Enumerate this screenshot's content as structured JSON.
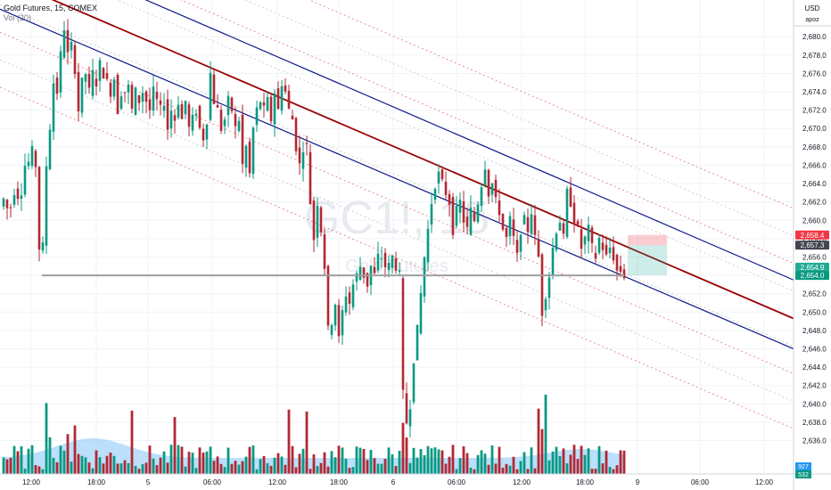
{
  "legend": {
    "symbol_line": "Gold Futures, 15, COMEX",
    "indicator_line": "Vol (20)"
  },
  "watermark": {
    "ticker": "GC1!, 15",
    "name": "Gold Futures"
  },
  "price_axis": {
    "currency": "USD",
    "username": "apoz",
    "labels": [
      "2,680.0",
      "2,678.0",
      "2,676.0",
      "2,674.0",
      "2,672.0",
      "2,670.0",
      "2,668.0",
      "2,666.0",
      "2,664.0",
      "2,662.0",
      "2,660.0",
      "2,658.0",
      "2,656.0",
      "2,654.0",
      "2,652.0",
      "2,650.0",
      "2,648.0",
      "2,646.0",
      "2,644.0",
      "2,642.0",
      "2,640.0",
      "2,638.0",
      "2,636.0"
    ]
  },
  "time_axis": {
    "labels": [
      "12:00",
      "18:00",
      "5",
      "06:00",
      "12:00",
      "18:00",
      "6",
      "06:00",
      "12:00",
      "18:00",
      "9",
      "06:00",
      "12:00"
    ]
  },
  "price_tags": [
    {
      "text": "2,658.4",
      "bg": "#f23645",
      "fg": "#ffffff"
    },
    {
      "text": "2,657.3",
      "bg": "#434651",
      "fg": "#ffffff"
    },
    {
      "text": "2,654.9",
      "bg": "#22ab94",
      "fg": "#ffffff"
    },
    {
      "text": "2,654.0",
      "bg": "#089981",
      "fg": "#ffffff"
    }
  ],
  "volume_tags": [
    {
      "text": "927",
      "bg": "#2196f3"
    },
    {
      "text": "532",
      "bg": "#089981"
    }
  ],
  "colors": {
    "up": "#089981",
    "down": "#b22833",
    "channel_main": "#990000",
    "channel_edge": "#0d1a8a",
    "vol_ma": "#90caf9"
  },
  "chart_data": {
    "type": "candlestick",
    "instrument": "Gold Futures, 15, COMEX",
    "ylim": [
      2634.5,
      2684
    ],
    "x_ticks": [
      "12:00",
      "18:00",
      "5",
      "06:00",
      "12:00",
      "18:00",
      "6",
      "06:00",
      "12:00",
      "18:00",
      "9",
      "06:00",
      "12:00"
    ],
    "price_path": [
      [
        0,
        2661.5
      ],
      [
        5,
        2662.5
      ],
      [
        10,
        2660.5
      ],
      [
        14,
        2662.5
      ],
      [
        18,
        2664
      ],
      [
        22,
        2661.5
      ],
      [
        26,
        2665
      ],
      [
        30,
        2667
      ],
      [
        33,
        2666
      ],
      [
        36,
        2667.5
      ],
      [
        40,
        2666
      ],
      [
        44,
        2657
      ],
      [
        47,
        2654.5
      ],
      [
        51,
        2665
      ],
      [
        55,
        2669
      ],
      [
        60,
        2675
      ],
      [
        64,
        2674
      ],
      [
        68,
        2678
      ],
      [
        72,
        2681
      ],
      [
        76,
        2678
      ],
      [
        80,
        2679
      ],
      [
        84,
        2676.5
      ],
      [
        88,
        2672
      ],
      [
        92,
        2675
      ],
      [
        96,
        2676
      ],
      [
        100,
        2674
      ],
      [
        104,
        2676
      ],
      [
        108,
        2675
      ],
      [
        112,
        2677
      ],
      [
        116,
        2676
      ],
      [
        120,
        2675
      ],
      [
        124,
        2674
      ],
      [
        128,
        2675.5
      ],
      [
        132,
        2672
      ],
      [
        136,
        2674
      ],
      [
        140,
        2674
      ],
      [
        144,
        2674.5
      ],
      [
        148,
        2672
      ],
      [
        152,
        2674
      ],
      [
        156,
        2673
      ],
      [
        160,
        2674
      ],
      [
        164,
        2673
      ],
      [
        168,
        2672
      ],
      [
        172,
        2674
      ],
      [
        176,
        2673
      ],
      [
        180,
        2672
      ],
      [
        184,
        2673
      ],
      [
        188,
        2670
      ],
      [
        192,
        2672
      ],
      [
        196,
        2671
      ],
      [
        200,
        2673
      ],
      [
        204,
        2671
      ],
      [
        208,
        2673
      ],
      [
        212,
        2670
      ],
      [
        216,
        2671
      ],
      [
        220,
        2672
      ],
      [
        224,
        2670
      ],
      [
        228,
        2669
      ],
      [
        232,
        2671
      ],
      [
        236,
        2676
      ],
      [
        240,
        2673
      ],
      [
        244,
        2672
      ],
      [
        248,
        2670
      ],
      [
        252,
        2671
      ],
      [
        256,
        2673
      ],
      [
        260,
        2672
      ],
      [
        264,
        2670
      ],
      [
        268,
        2671
      ],
      [
        272,
        2666
      ],
      [
        276,
        2668
      ],
      [
        280,
        2665
      ],
      [
        284,
        2670
      ],
      [
        288,
        2672
      ],
      [
        292,
        2673
      ],
      [
        296,
        2672
      ],
      [
        300,
        2673
      ],
      [
        304,
        2671
      ],
      [
        308,
        2674
      ],
      [
        312,
        2672
      ],
      [
        316,
        2675
      ],
      [
        320,
        2674
      ],
      [
        324,
        2672
      ],
      [
        328,
        2671
      ],
      [
        332,
        2668
      ],
      [
        336,
        2666
      ],
      [
        340,
        2668
      ],
      [
        344,
        2668
      ],
      [
        348,
        2662
      ],
      [
        352,
        2658
      ],
      [
        356,
        2662
      ],
      [
        360,
        2659
      ],
      [
        364,
        2655
      ],
      [
        368,
        2648
      ],
      [
        372,
        2649
      ],
      [
        376,
        2651
      ],
      [
        380,
        2647
      ],
      [
        384,
        2650
      ],
      [
        388,
        2652
      ],
      [
        392,
        2651
      ],
      [
        396,
        2653
      ],
      [
        400,
        2654
      ],
      [
        404,
        2655
      ],
      [
        408,
        2654
      ],
      [
        412,
        2653
      ],
      [
        416,
        2655
      ],
      [
        420,
        2654
      ],
      [
        424,
        2656
      ],
      [
        428,
        2656
      ],
      [
        432,
        2655
      ],
      [
        436,
        2655
      ],
      [
        440,
        2656
      ],
      [
        444,
        2655
      ],
      [
        448,
        2654
      ],
      [
        452,
        2641
      ],
      [
        456,
        2638
      ],
      [
        460,
        2640
      ],
      [
        464,
        2645
      ],
      [
        468,
        2648
      ],
      [
        472,
        2652
      ],
      [
        476,
        2656
      ],
      [
        480,
        2659
      ],
      [
        484,
        2662
      ],
      [
        488,
        2664
      ],
      [
        492,
        2665
      ],
      [
        496,
        2664
      ],
      [
        500,
        2663
      ],
      [
        504,
        2662
      ],
      [
        508,
        2659
      ],
      [
        512,
        2661
      ],
      [
        516,
        2662
      ],
      [
        520,
        2660
      ],
      [
        524,
        2659
      ],
      [
        528,
        2661
      ],
      [
        532,
        2660
      ],
      [
        536,
        2662
      ],
      [
        540,
        2664
      ],
      [
        544,
        2666
      ],
      [
        548,
        2663
      ],
      [
        552,
        2664
      ],
      [
        556,
        2662
      ],
      [
        560,
        2661
      ],
      [
        564,
        2659
      ],
      [
        568,
        2658
      ],
      [
        572,
        2660
      ],
      [
        576,
        2658
      ],
      [
        580,
        2656
      ],
      [
        584,
        2659
      ],
      [
        588,
        2660
      ],
      [
        592,
        2659
      ],
      [
        596,
        2661
      ],
      [
        600,
        2658
      ],
      [
        604,
        2656
      ],
      [
        608,
        2650
      ],
      [
        612,
        2652
      ],
      [
        616,
        2654
      ],
      [
        620,
        2657
      ],
      [
        624,
        2659
      ],
      [
        628,
        2660
      ],
      [
        632,
        2658
      ],
      [
        636,
        2663
      ],
      [
        640,
        2662
      ],
      [
        644,
        2660
      ],
      [
        648,
        2659
      ],
      [
        652,
        2657
      ],
      [
        656,
        2658
      ],
      [
        660,
        2659
      ],
      [
        664,
        2657
      ],
      [
        668,
        2656
      ],
      [
        672,
        2658
      ],
      [
        676,
        2657
      ],
      [
        680,
        2656
      ],
      [
        684,
        2657
      ],
      [
        688,
        2656
      ],
      [
        692,
        2654.5
      ],
      [
        696,
        2654.5
      ],
      [
        700,
        2654
      ]
    ],
    "channel": {
      "main_line": {
        "start": [
          0,
          2686.5
        ],
        "end": [
          890,
          2649.3
        ]
      },
      "upper_line": {
        "start": [
          140,
          2685
        ],
        "end": [
          890,
          2653.5
        ]
      },
      "lower_line": {
        "start": [
          0,
          2683
        ],
        "end": [
          890,
          2646
        ]
      },
      "dotted_offsets": [
        -12,
        -9,
        -6,
        -3,
        3,
        6,
        9,
        12
      ]
    },
    "support_level": 2654.0,
    "position": {
      "entry": 2657.3,
      "stop": 2658.4,
      "target": 2654.0
    },
    "volume_ma_level": 927,
    "last_volume": 532
  }
}
